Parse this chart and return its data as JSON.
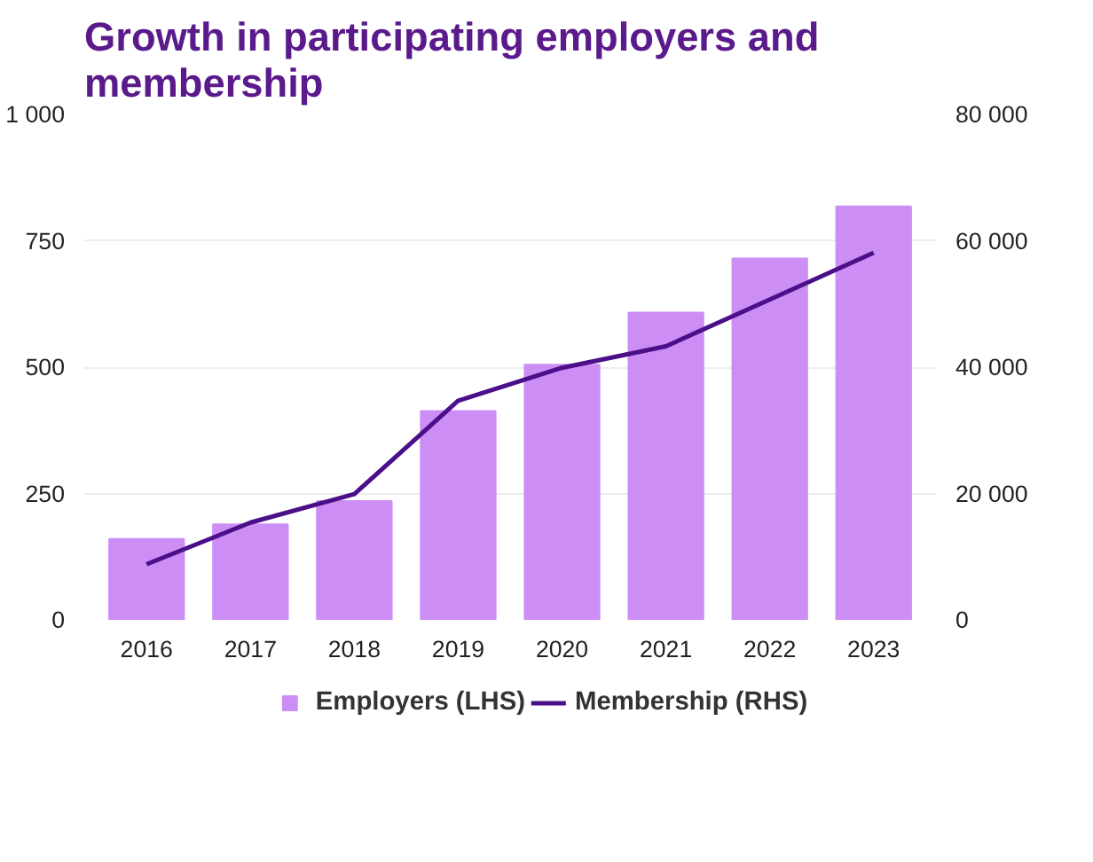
{
  "chart_data": {
    "type": "bar",
    "title": "Growth in participating employers and membership",
    "categories": [
      "2016",
      "2017",
      "2018",
      "2019",
      "2020",
      "2021",
      "2022",
      "2023"
    ],
    "series": [
      {
        "name": "Employers (LHS)",
        "color": "#cc8ef5",
        "values": [
          160,
          189,
          235,
          413,
          505,
          608,
          715,
          818
        ]
      },
      {
        "name": "Membership (RHS)",
        "type": "line",
        "axis": "y2",
        "color": "#4b0f8a",
        "values": [
          8800,
          15400,
          19900,
          34700,
          39900,
          43300,
          50700,
          58100
        ]
      }
    ],
    "ylim": [
      0,
      1000
    ],
    "yticks": [
      0,
      250,
      500,
      750,
      {
        "value": 1000,
        "label": "1 000"
      }
    ],
    "y2lim": [
      0,
      80000
    ],
    "y2ticks": [
      0,
      {
        "value": 20000,
        "label": "20 000"
      },
      {
        "value": 40000,
        "label": "40 000"
      },
      {
        "value": 60000,
        "label": "60 000"
      },
      {
        "value": 80000,
        "label": "80 000"
      }
    ],
    "grid": "y",
    "legend": "bottom",
    "marker": "none",
    "line_style": "solid"
  }
}
